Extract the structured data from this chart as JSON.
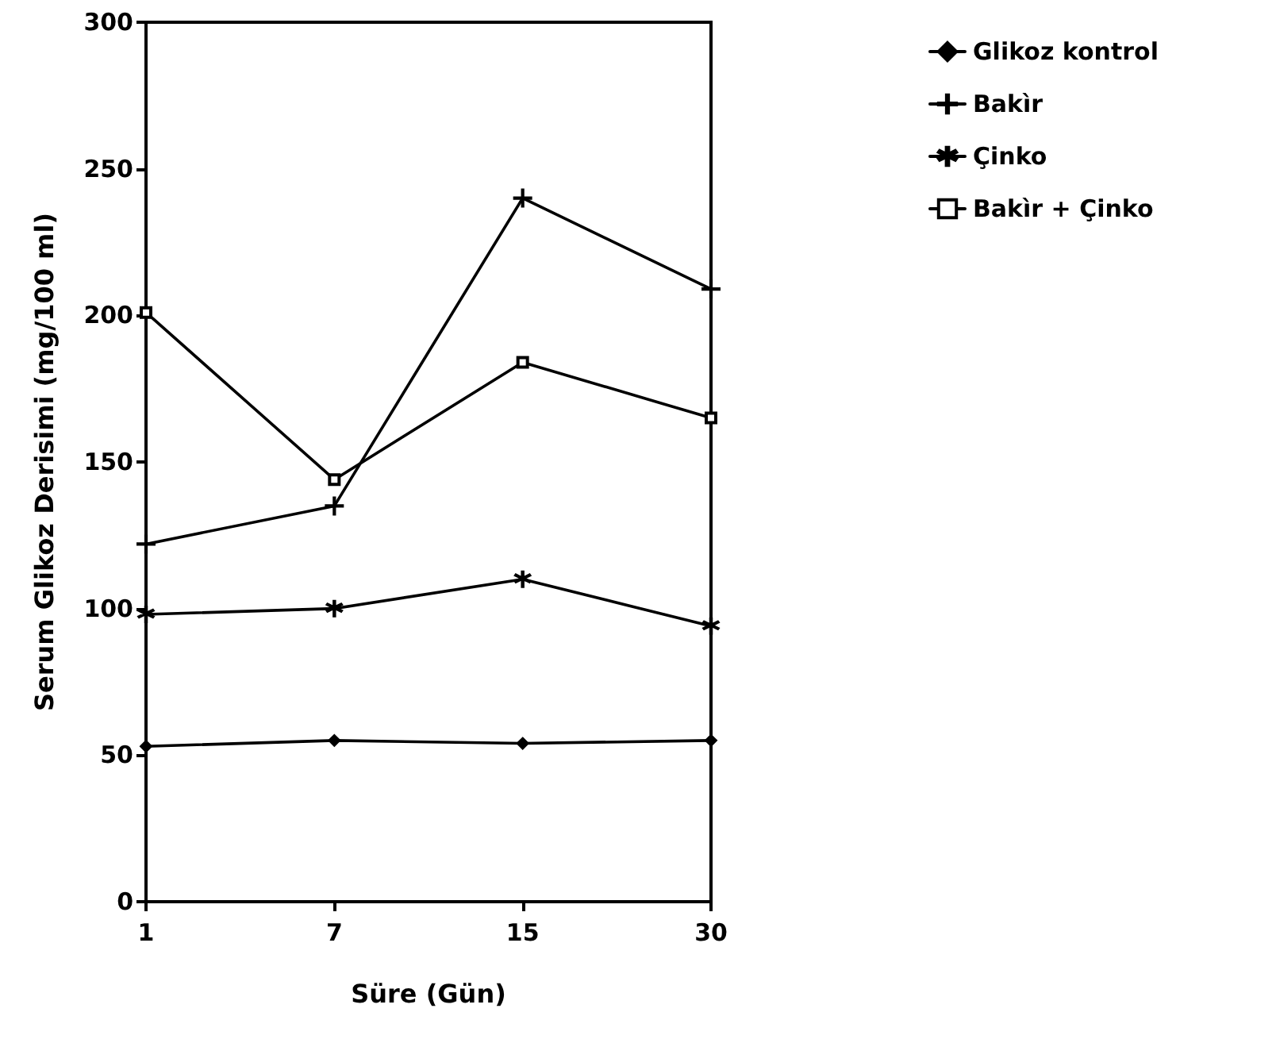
{
  "chart_data": {
    "type": "line",
    "xlabel": "Süre (Gün)",
    "ylabel": "Serum Glikoz Derisimi (mg/100 ml)",
    "categories": [
      "1",
      "7",
      "15",
      "30"
    ],
    "series": [
      {
        "name": "Glikoz kontrol",
        "color": "#000000",
        "marker": "diamond",
        "values": [
          53,
          55,
          54,
          55
        ]
      },
      {
        "name": "Bakìr",
        "color": "#000000",
        "marker": "cross",
        "values": [
          122,
          135,
          240,
          209
        ]
      },
      {
        "name": "Çinko",
        "color": "#000000",
        "marker": "star",
        "values": [
          98,
          100,
          110,
          94
        ]
      },
      {
        "name": "Bakìr + Çinko",
        "color": "#000000",
        "marker": "square",
        "values": [
          201,
          144,
          184,
          165
        ]
      }
    ],
    "ylim": [
      0,
      300
    ],
    "yticks": [
      0,
      50,
      100,
      150,
      200,
      250,
      300
    ],
    "grid": false,
    "legend": "top right",
    "line_style": "solid"
  }
}
